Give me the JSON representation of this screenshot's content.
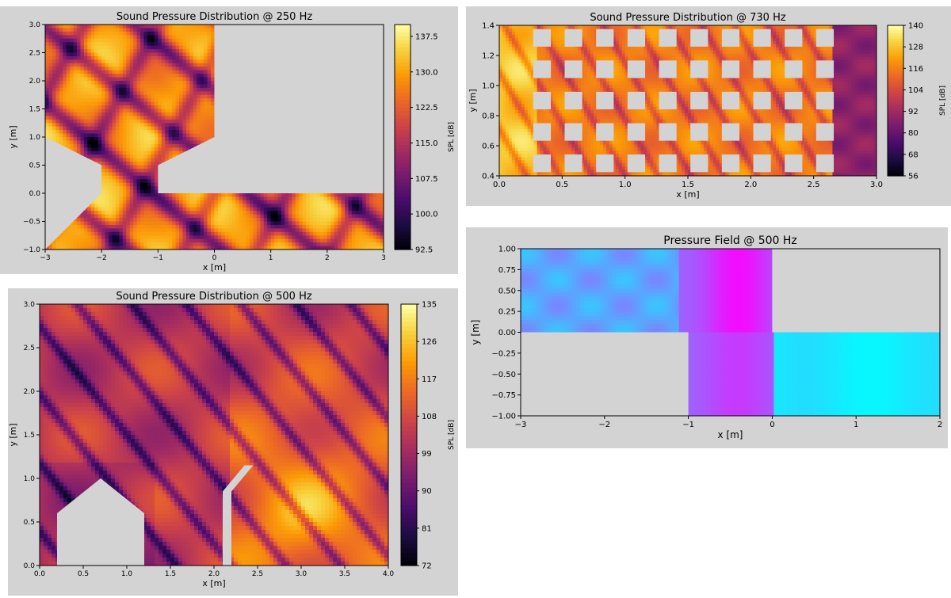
{
  "chart_data": [
    {
      "type": "heatmap",
      "title": "Sound Pressure Distribution @ 250 Hz",
      "xlabel": "x [m]",
      "ylabel": "y [m]",
      "xlim": [
        -3,
        3
      ],
      "ylim": [
        -1,
        3
      ],
      "xticks": [
        "−3",
        "−2",
        "−1",
        "0",
        "1",
        "2",
        "3"
      ],
      "yticks": [
        "−1.0",
        "−0.5",
        "0.0",
        "0.5",
        "1.0",
        "1.5",
        "2.0",
        "2.5",
        "3.0"
      ],
      "colormap": "inferno",
      "colorbar_label": "SPL [dB]",
      "colorbar_range": [
        92.5,
        140
      ],
      "colorbar_ticks": [
        "92.5",
        "100.0",
        "107.5",
        "115.0",
        "122.5",
        "130.0",
        "137.5"
      ],
      "domain_polygon": [
        [
          -3,
          -1
        ],
        [
          3,
          -1
        ],
        [
          3,
          0
        ],
        [
          -1,
          0
        ],
        [
          -1,
          0.5
        ],
        [
          0,
          1
        ],
        [
          0,
          3
        ],
        [
          -3,
          3
        ],
        [
          -3,
          1
        ],
        [
          -2,
          0.5
        ],
        [
          -2,
          0
        ]
      ]
    },
    {
      "type": "heatmap",
      "title": "Sound Pressure Distribution @ 730 Hz",
      "xlabel": "x [m]",
      "ylabel": "y [m]",
      "xlim": [
        0,
        3
      ],
      "ylim": [
        0.3,
        1.5
      ],
      "xticks": [
        "0.0",
        "0.5",
        "1.0",
        "1.5",
        "2.0",
        "2.5",
        "3.0"
      ],
      "yticks": [
        "0.4",
        "0.6",
        "0.8",
        "1.0",
        "1.2",
        "1.4"
      ],
      "colormap": "inferno",
      "colorbar_label": "SPL [dB]",
      "colorbar_range": [
        56,
        140
      ],
      "colorbar_ticks": [
        "56",
        "68",
        "80",
        "92",
        "104",
        "116",
        "128",
        "140"
      ],
      "obstacle_grid": {
        "columns_x": [
          0.27,
          0.52,
          0.77,
          1.02,
          1.27,
          1.52,
          1.77,
          2.02,
          2.27,
          2.52
        ],
        "rows_y": [
          0.33,
          0.58,
          0.83,
          1.08,
          1.33
        ],
        "size": 0.14
      }
    },
    {
      "type": "heatmap",
      "title": "Sound Pressure Distribution @ 500 Hz",
      "xlabel": "x [m]",
      "ylabel": "y [m]",
      "xlim": [
        0,
        4
      ],
      "ylim": [
        0,
        3
      ],
      "xticks": [
        "0.0",
        "0.5",
        "1.0",
        "1.5",
        "2.0",
        "2.5",
        "3.0",
        "3.5",
        "4.0"
      ],
      "yticks": [
        "0.0",
        "0.5",
        "1.0",
        "1.5",
        "2.0",
        "2.5",
        "3.0"
      ],
      "colormap": "inferno",
      "colorbar_label": "SPL [dB]",
      "colorbar_range": [
        72,
        135
      ],
      "colorbar_ticks": [
        "72",
        "81",
        "90",
        "99",
        "108",
        "117",
        "126",
        "135"
      ],
      "obstacles": [
        [
          [
            0.2,
            0
          ],
          [
            1.2,
            0
          ],
          [
            1.2,
            0.6
          ],
          [
            0.7,
            1.0
          ],
          [
            0.2,
            0.6
          ]
        ],
        [
          [
            2.1,
            0
          ],
          [
            2.2,
            0
          ],
          [
            2.2,
            0.85
          ],
          [
            2.45,
            1.15
          ],
          [
            2.35,
            1.15
          ],
          [
            2.1,
            0.85
          ]
        ]
      ]
    },
    {
      "type": "heatmap",
      "title": "Pressure Field @ 500 Hz",
      "xlabel": "x [m]",
      "ylabel": "y [m]",
      "xlim": [
        -3,
        2
      ],
      "ylim": [
        -1,
        1
      ],
      "xticks": [
        "−3",
        "−2",
        "−1",
        "0",
        "1",
        "2"
      ],
      "yticks": [
        "−1.00",
        "−0.75",
        "−0.50",
        "−0.25",
        "0.00",
        "0.25",
        "0.50",
        "0.75",
        "1.00"
      ],
      "colormap": "cool",
      "domain_polygon": [
        [
          -3,
          0
        ],
        [
          -3,
          1
        ],
        [
          0,
          1
        ],
        [
          0,
          0
        ],
        [
          2,
          0
        ],
        [
          2,
          -1
        ],
        [
          -1,
          -1
        ],
        [
          -1,
          0
        ]
      ]
    }
  ]
}
